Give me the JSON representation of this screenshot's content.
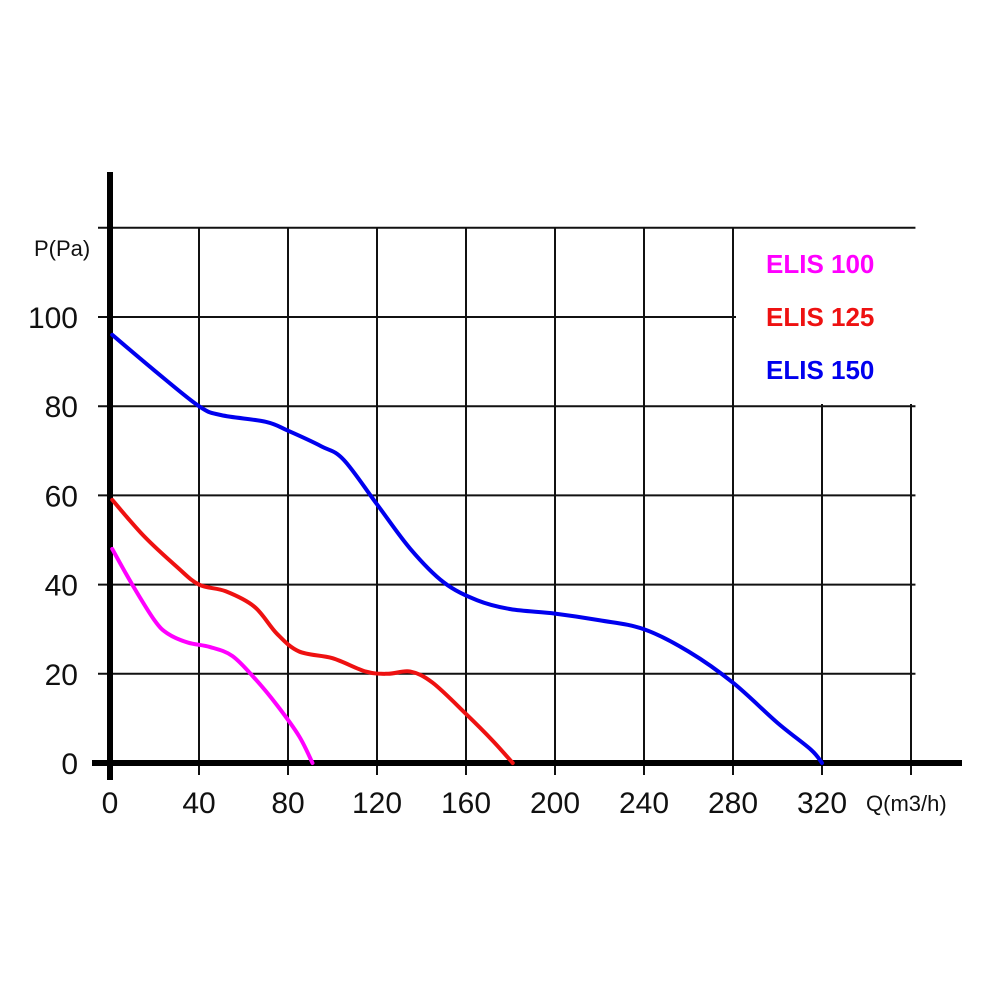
{
  "chart_data": {
    "type": "line",
    "ylabel": "P(Pa)",
    "xlabel": "Q(m3/h)",
    "xlim": [
      0,
      360
    ],
    "ylim": [
      0,
      120
    ],
    "x_ticks": [
      "0",
      "40",
      "80",
      "120",
      "160",
      "200",
      "240",
      "280",
      "320"
    ],
    "y_ticks": [
      "0",
      "20",
      "40",
      "60",
      "80",
      "100"
    ],
    "grid": true,
    "legend_position": "top-right",
    "series": [
      {
        "name": "ELIS 100",
        "color": "#ff00ff",
        "points": [
          [
            1,
            48
          ],
          [
            10,
            40
          ],
          [
            20,
            32
          ],
          [
            26,
            29
          ],
          [
            35,
            27
          ],
          [
            45,
            26
          ],
          [
            55,
            24
          ],
          [
            65,
            19
          ],
          [
            75,
            13
          ],
          [
            85,
            6
          ],
          [
            91,
            0
          ]
        ]
      },
      {
        "name": "ELIS 125",
        "color": "#ee1111",
        "points": [
          [
            1,
            59
          ],
          [
            15,
            51
          ],
          [
            30,
            44
          ],
          [
            40,
            40
          ],
          [
            52,
            38.5
          ],
          [
            65,
            35
          ],
          [
            75,
            29
          ],
          [
            85,
            25
          ],
          [
            100,
            23.5
          ],
          [
            115,
            20.5
          ],
          [
            125,
            20
          ],
          [
            135,
            20.5
          ],
          [
            145,
            18
          ],
          [
            160,
            11
          ],
          [
            172,
            5
          ],
          [
            181,
            0
          ]
        ]
      },
      {
        "name": "ELIS 150",
        "color": "#0000ee",
        "points": [
          [
            1,
            96
          ],
          [
            20,
            88
          ],
          [
            40,
            80
          ],
          [
            50,
            78
          ],
          [
            70,
            76.5
          ],
          [
            80,
            74.5
          ],
          [
            95,
            71
          ],
          [
            105,
            68
          ],
          [
            120,
            58
          ],
          [
            135,
            48
          ],
          [
            150,
            40.5
          ],
          [
            165,
            36.5
          ],
          [
            180,
            34.5
          ],
          [
            200,
            33.5
          ],
          [
            220,
            32
          ],
          [
            240,
            30
          ],
          [
            260,
            25
          ],
          [
            280,
            18
          ],
          [
            300,
            9
          ],
          [
            315,
            3
          ],
          [
            320,
            0
          ]
        ]
      }
    ]
  }
}
